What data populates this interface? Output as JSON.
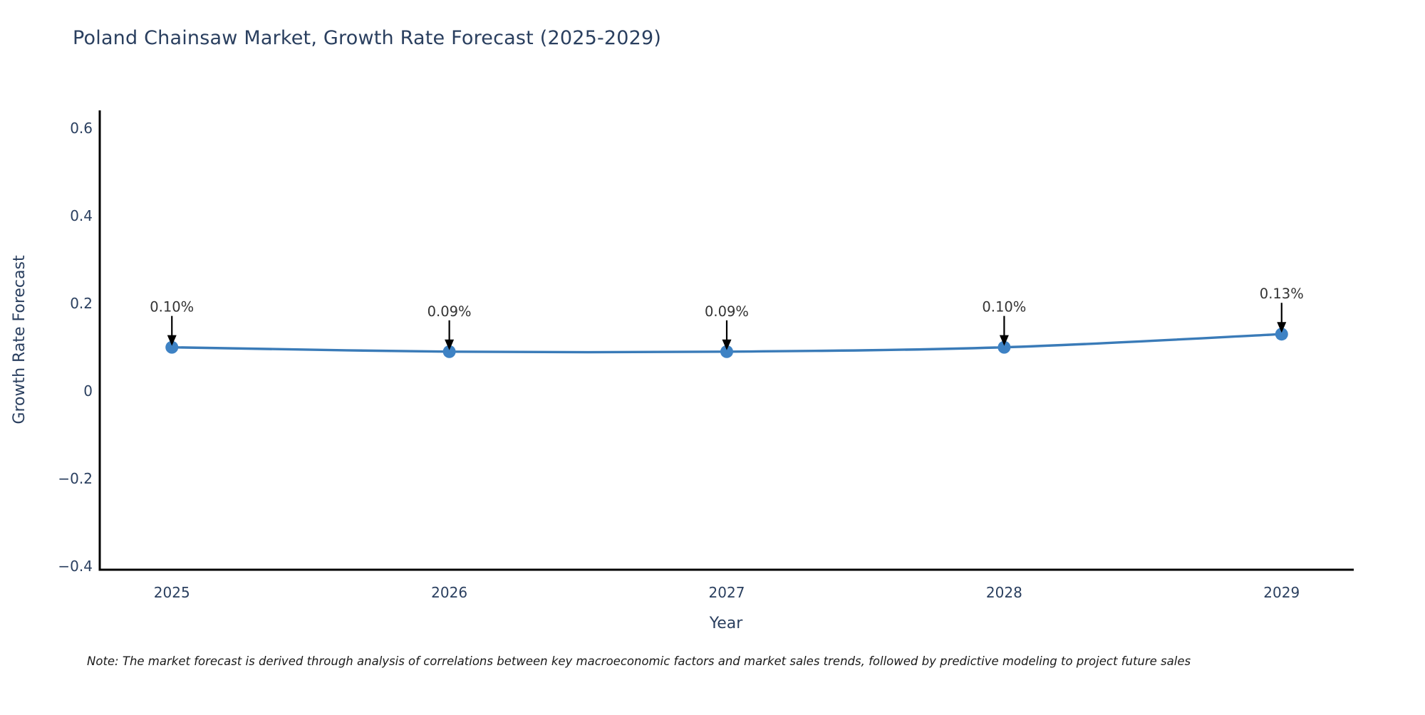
{
  "chart": {
    "title": "Poland Chainsaw Market, Growth Rate Forecast (2025-2029)",
    "note": "Note: The market forecast is derived through analysis of correlations between key macroeconomic factors and market sales trends, followed by predictive modeling to project future sales",
    "x_axis_label": "Year",
    "y_axis_label": "Growth Rate Forecast"
  },
  "chart_data": {
    "type": "line",
    "title": "Poland Chainsaw Market, Growth Rate Forecast (2025-2029)",
    "xlabel": "Year",
    "ylabel": "Growth Rate Forecast",
    "x": [
      2025,
      2026,
      2027,
      2028,
      2029
    ],
    "values": [
      0.1,
      0.09,
      0.09,
      0.1,
      0.13
    ],
    "point_labels": [
      "0.10%",
      "0.09%",
      "0.09%",
      "0.10%",
      "0.13%"
    ],
    "xticks": [
      {
        "label": "2025",
        "value": 2025
      },
      {
        "label": "2026",
        "value": 2026
      },
      {
        "label": "2027",
        "value": 2027
      },
      {
        "label": "2028",
        "value": 2028
      },
      {
        "label": "2029",
        "value": 2029
      }
    ],
    "yticks": [
      {
        "label": "0.6",
        "value": 0.6
      },
      {
        "label": "0.4",
        "value": 0.4
      },
      {
        "label": "0.2",
        "value": 0.2
      },
      {
        "label": "0",
        "value": 0
      },
      {
        "label": "−0.2",
        "value": -0.2
      },
      {
        "label": "−0.4",
        "value": -0.4
      }
    ],
    "xlim": [
      2024.74,
      2029.26
    ],
    "ylim": [
      -0.408,
      0.641
    ],
    "grid": false,
    "legend": false,
    "line_color": "#3a7bb8",
    "marker_color": "#3e82c4",
    "axis_color": "#000000",
    "tick_text_color": "#2a3f5f",
    "annotation_text_color": "#333333",
    "annotation_arrow_color": "#000000"
  }
}
